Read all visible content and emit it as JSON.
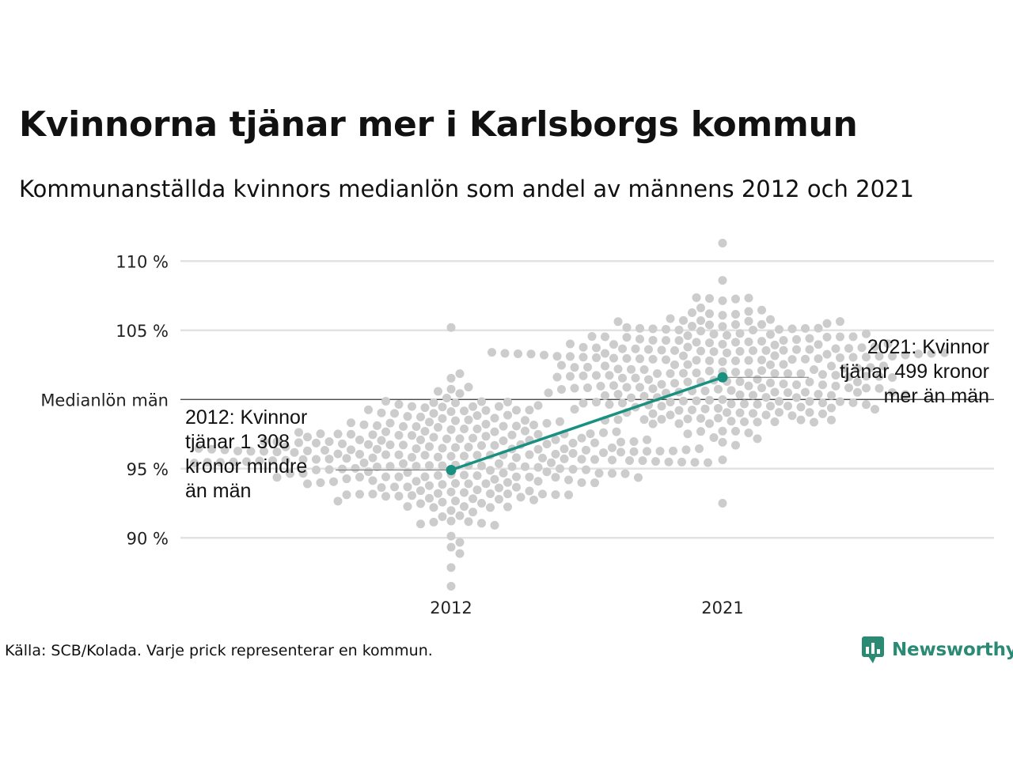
{
  "title": "Kvinnorna tjänar mer i Karlsborgs kommun",
  "subtitle": "Kommunanställda kvinnors medianlön som andel av männens 2012 och 2021",
  "source": "Källa: SCB/Kolada. Varje prick representerar en kommun.",
  "logo": {
    "text": "Newsworthy",
    "icon": "bar-chart-speech-bubble-icon",
    "color": "#2a8a74"
  },
  "chart_data": {
    "type": "scatter",
    "subtype": "beeswarm",
    "categories": [
      "2012",
      "2021"
    ],
    "y_ticks": [
      {
        "value": 110,
        "label": "110 %"
      },
      {
        "value": 105,
        "label": "105 %"
      },
      {
        "value": 100,
        "label": "Medianlön män"
      },
      {
        "value": 95,
        "label": "95 %"
      },
      {
        "value": 90,
        "label": "90 %"
      }
    ],
    "ylim": [
      86.3,
      111.5
    ],
    "grid": true,
    "reference_line": {
      "value": 100,
      "label": "Medianlön män"
    },
    "highlight": {
      "color": "#1a9080",
      "values": [
        {
          "category": "2012",
          "value": 94.9
        },
        {
          "category": "2021",
          "value": 101.6
        }
      ]
    },
    "dot_color": "#cccccc",
    "distributions": [
      {
        "category": "2012",
        "count": 290,
        "min": 86.5,
        "max": 105.2,
        "median": 95.9
      },
      {
        "category": "2021",
        "count": 290,
        "min": 92.5,
        "max": 111.3,
        "median": 102.0
      }
    ],
    "annotations": [
      {
        "category": "2012",
        "lines": [
          "2012: Kvinnor",
          "tjänar 1 308",
          "kronor mindre",
          "än män"
        ]
      },
      {
        "category": "2021",
        "lines": [
          "2021: Kvinnor",
          "tjänar 499 kronor",
          "mer än män"
        ]
      }
    ]
  }
}
